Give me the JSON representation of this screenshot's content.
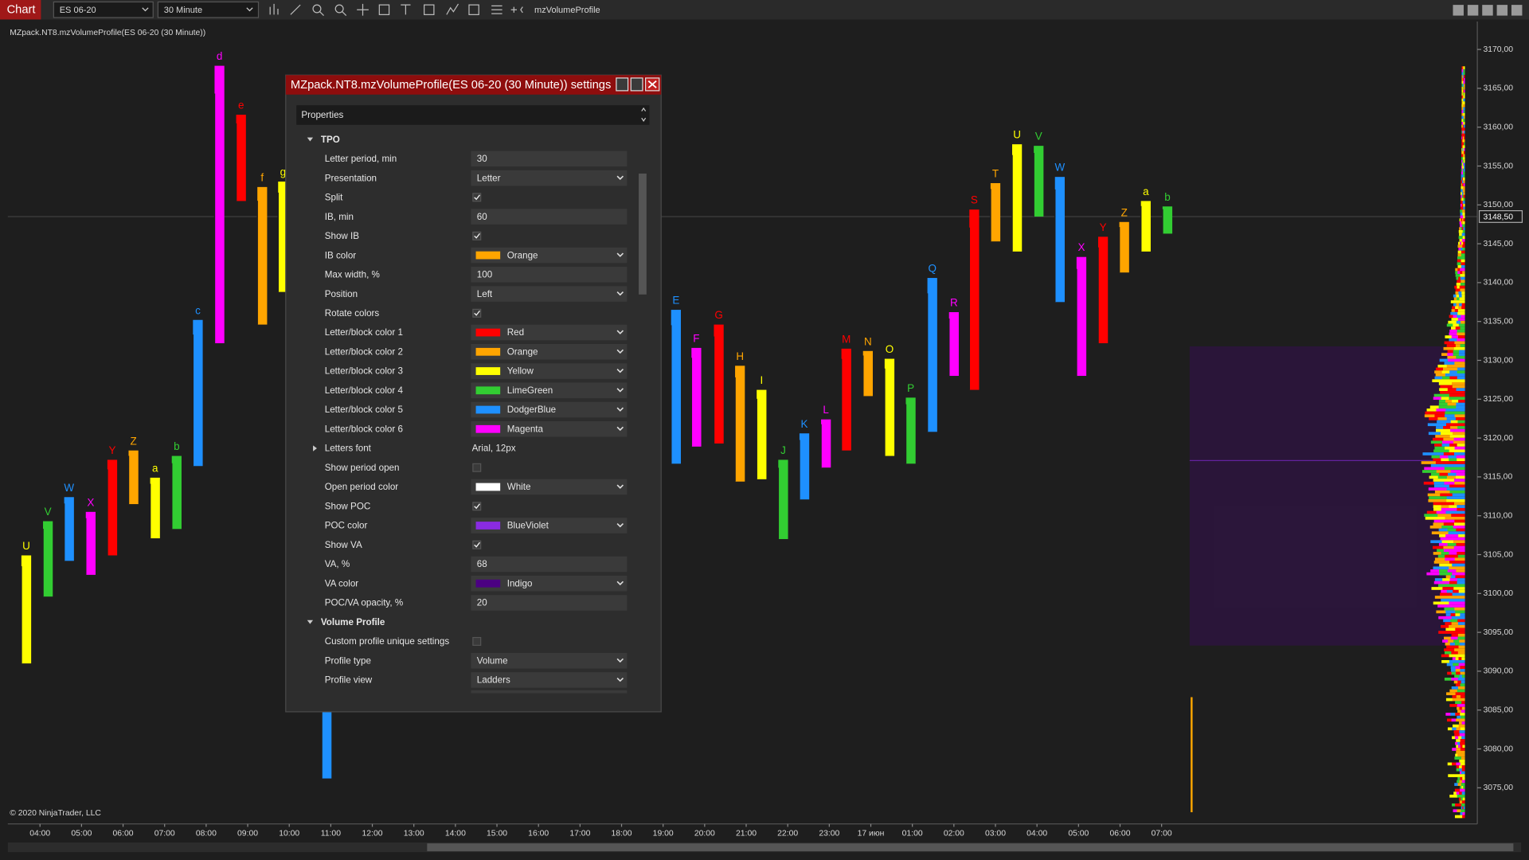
{
  "toolbar": {
    "app": "Chart",
    "instrument": "ES 06-20",
    "interval": "30 Minute",
    "indicator": "mzVolumeProfile"
  },
  "chart_data": {
    "type": "tpo",
    "title": "MZpack.NT8.mzVolumeProfile(ES 06-20 (30 Minute))",
    "footer": "© 2020 NinjaTrader, LLC",
    "xlim": [
      3.225,
      38.6
    ],
    "ylim": [
      3070.6,
      3172.6
    ],
    "xticks": [
      {
        "value": 4,
        "label": "04:00"
      },
      {
        "value": 5,
        "label": "05:00"
      },
      {
        "value": 6,
        "label": "06:00"
      },
      {
        "value": 7,
        "label": "07:00"
      },
      {
        "value": 8,
        "label": "08:00"
      },
      {
        "value": 9,
        "label": "09:00"
      },
      {
        "value": 10,
        "label": "10:00"
      },
      {
        "value": 11,
        "label": "11:00"
      },
      {
        "value": 12,
        "label": "12:00"
      },
      {
        "value": 13,
        "label": "13:00"
      },
      {
        "value": 14,
        "label": "14:00"
      },
      {
        "value": 15,
        "label": "15:00"
      },
      {
        "value": 16,
        "label": "16:00"
      },
      {
        "value": 17,
        "label": "17:00"
      },
      {
        "value": 18,
        "label": "18:00"
      },
      {
        "value": 19,
        "label": "19:00"
      },
      {
        "value": 20,
        "label": "20:00"
      },
      {
        "value": 21,
        "label": "21:00"
      },
      {
        "value": 22,
        "label": "22:00"
      },
      {
        "value": 23,
        "label": "23:00"
      },
      {
        "value": 24,
        "label": "17 июн"
      },
      {
        "value": 25,
        "label": "01:00"
      },
      {
        "value": 26,
        "label": "02:00"
      },
      {
        "value": 27,
        "label": "03:00"
      },
      {
        "value": 28,
        "label": "04:00"
      },
      {
        "value": 29,
        "label": "05:00"
      },
      {
        "value": 30,
        "label": "06:00"
      },
      {
        "value": 31,
        "label": "07:00"
      }
    ],
    "yticks": [
      {
        "value": 3075,
        "label": "3075,00"
      },
      {
        "value": 3080,
        "label": "3080,00"
      },
      {
        "value": 3085,
        "label": "3085,00"
      },
      {
        "value": 3090,
        "label": "3090,00"
      },
      {
        "value": 3095,
        "label": "3095,00"
      },
      {
        "value": 3100,
        "label": "3100,00"
      },
      {
        "value": 3105,
        "label": "3105,00"
      },
      {
        "value": 3110,
        "label": "3110,00"
      },
      {
        "value": 3115,
        "label": "3115,00"
      },
      {
        "value": 3120,
        "label": "3120,00"
      },
      {
        "value": 3125,
        "label": "3125,00"
      },
      {
        "value": 3130,
        "label": "3130,00"
      },
      {
        "value": 3135,
        "label": "3135,00"
      },
      {
        "value": 3140,
        "label": "3140,00"
      },
      {
        "value": 3145,
        "label": "3145,00"
      },
      {
        "value": 3150,
        "label": "3150,00"
      },
      {
        "value": 3155,
        "label": "3155,00"
      },
      {
        "value": 3160,
        "label": "3160,00"
      },
      {
        "value": 3165,
        "label": "3165,00"
      },
      {
        "value": 3170,
        "label": "3170,00"
      }
    ],
    "last_price": {
      "value": 3148.5,
      "label": "3148,50"
    },
    "value_area": [
      3093.3,
      3131.8
    ],
    "poc": 3117.1,
    "bars": [
      {
        "letter": "U",
        "x": 3.67,
        "low": 3091,
        "high": 3104.9,
        "color": "#ffff00"
      },
      {
        "letter": "V",
        "x": 4.19,
        "low": 3099.6,
        "high": 3109.3,
        "color": "#32cd32"
      },
      {
        "letter": "W",
        "x": 4.7,
        "low": 3104.2,
        "high": 3112.4,
        "color": "#1e90ff"
      },
      {
        "letter": "X",
        "x": 5.22,
        "low": 3102.4,
        "high": 3110.5,
        "color": "#ff00ff"
      },
      {
        "letter": "Y",
        "x": 5.74,
        "low": 3104.9,
        "high": 3117.2,
        "color": "#ff0000"
      },
      {
        "letter": "Z",
        "x": 6.25,
        "low": 3111.5,
        "high": 3118.4,
        "color": "#ffa500"
      },
      {
        "letter": "a",
        "x": 6.77,
        "low": 3107.1,
        "high": 3114.9,
        "color": "#ffff00"
      },
      {
        "letter": "b",
        "x": 7.29,
        "low": 3108.3,
        "high": 3117.7,
        "color": "#32cd32"
      },
      {
        "letter": "c",
        "x": 7.8,
        "low": 3116.4,
        "high": 3135.2,
        "color": "#1e90ff"
      },
      {
        "letter": "d",
        "x": 8.32,
        "low": 3132.2,
        "high": 3167.9,
        "color": "#ff00ff"
      },
      {
        "letter": "e",
        "x": 8.84,
        "low": 3150.5,
        "high": 3161.6,
        "color": "#ff0000"
      },
      {
        "letter": "f",
        "x": 9.35,
        "low": 3134.6,
        "high": 3152.3,
        "color": "#ffa500"
      },
      {
        "letter": "g",
        "x": 9.85,
        "low": 3138.8,
        "high": 3153,
        "color": "#ffff00"
      },
      {
        "x": 10.9,
        "low": 3076.2,
        "high": 3105,
        "color": "#1e90ff"
      },
      {
        "letter": "E",
        "x": 19.31,
        "low": 3116.7,
        "high": 3136.5,
        "color": "#1e90ff"
      },
      {
        "letter": "F",
        "x": 19.8,
        "low": 3118.9,
        "high": 3131.6,
        "color": "#ff00ff"
      },
      {
        "letter": "G",
        "x": 20.34,
        "low": 3119.3,
        "high": 3134.6,
        "color": "#ff0000"
      },
      {
        "letter": "H",
        "x": 20.85,
        "low": 3114.4,
        "high": 3129.3,
        "color": "#ffa500"
      },
      {
        "letter": "I",
        "x": 21.37,
        "low": 3114.7,
        "high": 3126.2,
        "color": "#ffff00"
      },
      {
        "letter": "J",
        "x": 21.89,
        "low": 3107,
        "high": 3117.2,
        "color": "#32cd32"
      },
      {
        "letter": "K",
        "x": 22.4,
        "low": 3112.1,
        "high": 3120.6,
        "color": "#1e90ff"
      },
      {
        "letter": "L",
        "x": 22.92,
        "low": 3116.2,
        "high": 3122.4,
        "color": "#ff00ff"
      },
      {
        "letter": "M",
        "x": 23.41,
        "low": 3118.4,
        "high": 3131.5,
        "color": "#ff0000"
      },
      {
        "letter": "N",
        "x": 23.93,
        "low": 3125.4,
        "high": 3131.2,
        "color": "#ffa500"
      },
      {
        "letter": "O",
        "x": 24.45,
        "low": 3117.7,
        "high": 3130.2,
        "color": "#ffff00"
      },
      {
        "letter": "P",
        "x": 24.96,
        "low": 3116.7,
        "high": 3125.2,
        "color": "#32cd32"
      },
      {
        "letter": "Q",
        "x": 25.48,
        "low": 3120.8,
        "high": 3140.6,
        "color": "#1e90ff"
      },
      {
        "letter": "R",
        "x": 26,
        "low": 3128,
        "high": 3136.2,
        "color": "#ff00ff"
      },
      {
        "letter": "S",
        "x": 26.49,
        "low": 3126.2,
        "high": 3149.4,
        "color": "#ff0000"
      },
      {
        "letter": "T",
        "x": 27,
        "low": 3145.3,
        "high": 3152.8,
        "color": "#ffa500"
      },
      {
        "letter": "U",
        "x": 27.52,
        "low": 3144,
        "high": 3157.8,
        "color": "#ffff00"
      },
      {
        "letter": "V",
        "x": 28.04,
        "low": 3148.5,
        "high": 3157.6,
        "color": "#32cd32"
      },
      {
        "letter": "W",
        "x": 28.55,
        "low": 3137.5,
        "high": 3153.6,
        "color": "#1e90ff"
      },
      {
        "letter": "X",
        "x": 29.07,
        "low": 3128,
        "high": 3143.3,
        "color": "#ff00ff"
      },
      {
        "letter": "Y",
        "x": 29.59,
        "low": 3132.2,
        "high": 3145.9,
        "color": "#ff0000"
      },
      {
        "letter": "Z",
        "x": 30.1,
        "low": 3141.3,
        "high": 3147.8,
        "color": "#ffa500"
      },
      {
        "letter": "a",
        "x": 30.62,
        "low": 3144,
        "high": 3150.5,
        "color": "#ffff00"
      },
      {
        "letter": "b",
        "x": 31.14,
        "low": 3146.3,
        "high": 3149.8,
        "color": "#32cd32"
      }
    ]
  },
  "dialog": {
    "title": "MZpack.NT8.mzVolumeProfile(ES 06-20 (30 Minute)) settings",
    "header": "Properties",
    "rows": [
      {
        "section": "TPO"
      },
      {
        "label": "Letter period, min",
        "value": 30
      },
      {
        "label": "Presentation",
        "value": "Letter",
        "control": "dropdown"
      },
      {
        "label": "Split",
        "checked": true
      },
      {
        "label": "IB, min",
        "value": 60
      },
      {
        "label": "Show IB",
        "checked": true
      },
      {
        "label": "IB color",
        "value": "Orange",
        "swatch": "#ffa500",
        "control": "dropdown"
      },
      {
        "label": "Max width, %",
        "value": 100
      },
      {
        "label": "Position",
        "value": "Left",
        "control": "dropdown"
      },
      {
        "label": "Rotate colors",
        "checked": true
      },
      {
        "label": "Letter/block color 1",
        "value": "Red",
        "swatch": "#ff0000",
        "control": "dropdown"
      },
      {
        "label": "Letter/block color 2",
        "value": "Orange",
        "swatch": "#ffa500",
        "control": "dropdown"
      },
      {
        "label": "Letter/block color 3",
        "value": "Yellow",
        "swatch": "#ffff00",
        "control": "dropdown"
      },
      {
        "label": "Letter/block color 4",
        "value": "LimeGreen",
        "swatch": "#32cd32",
        "control": "dropdown"
      },
      {
        "label": "Letter/block color 5",
        "value": "DodgerBlue",
        "swatch": "#1e90ff",
        "control": "dropdown"
      },
      {
        "label": "Letter/block color 6",
        "value": "Magenta",
        "swatch": "#ff00ff",
        "control": "dropdown"
      },
      {
        "label": "Letters font",
        "value": "Arial, 12px",
        "control": "expander"
      },
      {
        "label": "Show period open",
        "checked": false
      },
      {
        "label": "Open period color",
        "value": "White",
        "swatch": "#ffffff",
        "control": "dropdown"
      },
      {
        "label": "Show POC",
        "checked": true
      },
      {
        "label": "POC color",
        "value": "BlueViolet",
        "swatch": "#8a2be2",
        "control": "dropdown"
      },
      {
        "label": "Show VA",
        "checked": true
      },
      {
        "label": "VA, %",
        "value": 68
      },
      {
        "label": "VA color",
        "value": "Indigo",
        "swatch": "#4b0082",
        "control": "dropdown"
      },
      {
        "label": "POC/VA opacity, %",
        "value": 20
      },
      {
        "section": "Volume Profile"
      },
      {
        "label": "Custom profile unique settings",
        "checked": false
      },
      {
        "label": "Profile type",
        "value": "Volume",
        "control": "dropdown"
      },
      {
        "label": "Profile view",
        "value": "Ladders",
        "control": "dropdown"
      }
    ]
  }
}
